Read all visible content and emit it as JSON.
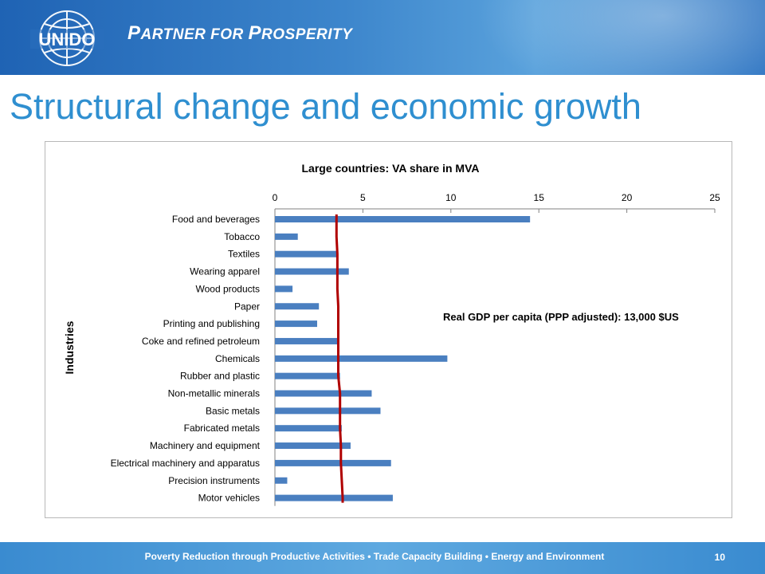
{
  "header": {
    "logo_text": "UNIDO",
    "tagline_first": "P",
    "tagline_rest1": "ARTNER FOR ",
    "tagline_second": "P",
    "tagline_rest2": "ROSPERITY"
  },
  "slide": {
    "title": "Structural change and economic growth"
  },
  "footer": {
    "text": "Poverty Reduction through Productive Activities  •  Trade Capacity Building  •  Energy and Environment",
    "page_number": "10"
  },
  "colors": {
    "bar": "#4a7fc0",
    "line": "#b00000",
    "title": "#2f8fd0"
  },
  "chart_data": {
    "type": "bar",
    "orientation": "horizontal",
    "title": "Large countries: VA share in MVA",
    "ylabel": "Industries",
    "xlabel": "",
    "xlim": [
      0,
      25
    ],
    "xticks": [
      0,
      5,
      10,
      15,
      20,
      25
    ],
    "axis_position": "top",
    "grid": false,
    "annotation": "Real GDP per capita (PPP adjusted): 13,000 $US",
    "categories": [
      "Food and beverages",
      "Tobacco",
      "Textiles",
      "Wearing apparel",
      "Wood products",
      "Paper",
      "Printing and publishing",
      "Coke and refined petroleum",
      "Chemicals",
      "Rubber and plastic",
      "Non-metallic minerals",
      "Basic metals",
      "Fabricated metals",
      "Machinery and equipment",
      "Electrical machinery and apparatus",
      "Precision instruments",
      "Motor vehicles"
    ],
    "values": [
      14.5,
      1.3,
      3.6,
      4.2,
      1.0,
      2.5,
      2.4,
      3.6,
      9.8,
      3.7,
      5.5,
      6.0,
      3.8,
      4.3,
      6.6,
      0.7,
      6.7
    ],
    "line_values": [
      3.5,
      3.5,
      3.55,
      3.55,
      3.55,
      3.6,
      3.6,
      3.6,
      3.6,
      3.6,
      3.7,
      3.7,
      3.7,
      3.75,
      3.75,
      3.8,
      3.85
    ]
  }
}
